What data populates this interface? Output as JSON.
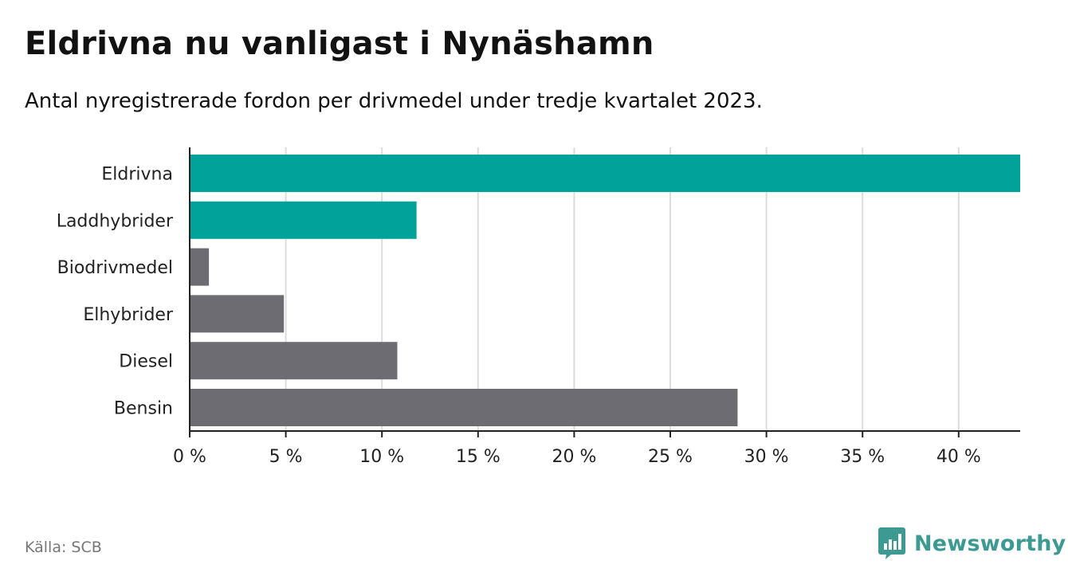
{
  "header": {
    "title": "Eldrivna nu vanligast i Nynäshamn",
    "subtitle": "Antal nyregistrerade fordon per drivmedel under tredje kvartalet 2023."
  },
  "footer": {
    "source": "Källa: SCB",
    "brand": "Newsworthy",
    "brand_icon": "bar-chart-icon",
    "brand_color": "#3d9a92"
  },
  "chart_data": {
    "type": "bar",
    "orientation": "horizontal",
    "title": "Eldrivna nu vanligast i Nynäshamn",
    "xlabel": "",
    "ylabel": "",
    "xlim": [
      0,
      43.2
    ],
    "grid": true,
    "ticks": [
      0,
      5,
      10,
      15,
      20,
      25,
      30,
      35,
      40
    ],
    "tick_labels": [
      "0 %",
      "5 %",
      "10 %",
      "15 %",
      "20 %",
      "25 %",
      "30 %",
      "35 %",
      "40 %"
    ],
    "categories": [
      "Eldrivna",
      "Laddhybrider",
      "Biodrivmedel",
      "Elhybrider",
      "Diesel",
      "Bensin"
    ],
    "values": [
      43.2,
      11.8,
      1.0,
      4.9,
      10.8,
      28.5
    ],
    "colors": [
      "#00a29a",
      "#00a29a",
      "#6d6c72",
      "#6d6c72",
      "#6d6c72",
      "#6d6c72"
    ]
  }
}
